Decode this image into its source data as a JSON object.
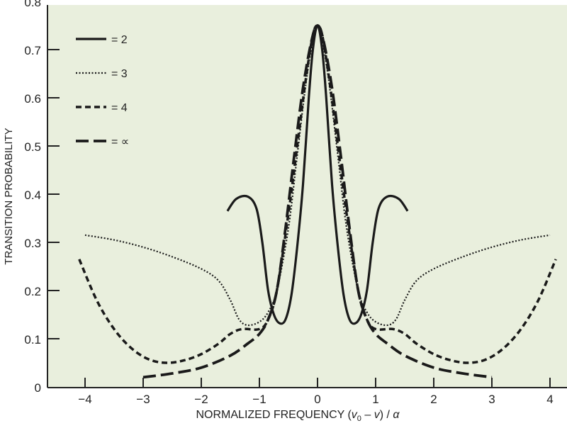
{
  "chart_data": {
    "type": "line",
    "title": "",
    "xlabel": "NORMALIZED FREQUENCY (v0 – v) / α",
    "xlabel_parts": {
      "prefix": "NORMALIZED FREQUENCY (",
      "v0": "v",
      "sub0": "0",
      "mid": " – ",
      "v": "v",
      "close": ") / ",
      "alpha": "α"
    },
    "ylabel": "TRANSITION PROBABILITY",
    "xlim": [
      -4.65,
      4.26
    ],
    "ylim": [
      0,
      0.8
    ],
    "xticks": [
      -4,
      -3,
      -2,
      -1,
      0,
      1,
      2,
      3,
      4
    ],
    "xtick_labels": [
      "−4",
      "−3",
      "−2",
      "−1",
      "0",
      "1",
      "2",
      "3",
      "4"
    ],
    "yticks": [
      0,
      0.1,
      0.2,
      0.3,
      0.4,
      0.5,
      0.6,
      0.7,
      0.8
    ],
    "ytick_labels": [
      "0",
      "0.1",
      "0.2",
      "0.3",
      "0.4",
      "0.5",
      "0.6",
      "0.7",
      "0.8"
    ],
    "grid": false,
    "legend_position": "top-left",
    "background": "#e9efdd",
    "symmetric_about_x0": true,
    "series": [
      {
        "name": "= 2",
        "style": "solid",
        "x": [
          -1.55,
          -1.4,
          -1.2,
          -1.05,
          -0.95,
          -0.85,
          -0.75,
          -0.65,
          -0.55,
          -0.45,
          -0.35,
          -0.25,
          -0.15,
          -0.08,
          0
        ],
        "y": [
          0.365,
          0.39,
          0.395,
          0.37,
          0.3,
          0.2,
          0.15,
          0.132,
          0.14,
          0.19,
          0.29,
          0.42,
          0.6,
          0.7,
          0.75
        ]
      },
      {
        "name": "= 3",
        "style": "dotted",
        "x": [
          -4,
          -3.5,
          -3,
          -2.5,
          -2,
          -1.7,
          -1.5,
          -1.35,
          -1.2,
          -1.0,
          -0.85,
          -0.7,
          -0.5,
          -0.35,
          -0.2,
          -0.08,
          0
        ],
        "y": [
          0.315,
          0.305,
          0.29,
          0.27,
          0.245,
          0.22,
          0.18,
          0.14,
          0.128,
          0.135,
          0.155,
          0.2,
          0.33,
          0.48,
          0.63,
          0.72,
          0.75
        ]
      },
      {
        "name": "= 4",
        "style": "short-dash",
        "x": [
          -4.1,
          -3.8,
          -3.5,
          -3.2,
          -2.9,
          -2.6,
          -2.3,
          -2,
          -1.7,
          -1.5,
          -1.3,
          -1.0,
          -0.85,
          -0.7,
          -0.5,
          -0.35,
          -0.2,
          -0.08,
          0
        ],
        "y": [
          0.265,
          0.18,
          0.12,
          0.08,
          0.057,
          0.05,
          0.055,
          0.068,
          0.09,
          0.11,
          0.12,
          0.12,
          0.14,
          0.2,
          0.36,
          0.5,
          0.64,
          0.73,
          0.75
        ]
      },
      {
        "name": "= ∝",
        "style": "long-dash",
        "x": [
          -3,
          -2.5,
          -2,
          -1.5,
          -1.2,
          -1,
          -0.85,
          -0.7,
          -0.55,
          -0.4,
          -0.25,
          -0.1,
          0
        ],
        "y": [
          0.02,
          0.028,
          0.04,
          0.065,
          0.09,
          0.11,
          0.14,
          0.2,
          0.33,
          0.48,
          0.62,
          0.72,
          0.75
        ]
      }
    ]
  }
}
